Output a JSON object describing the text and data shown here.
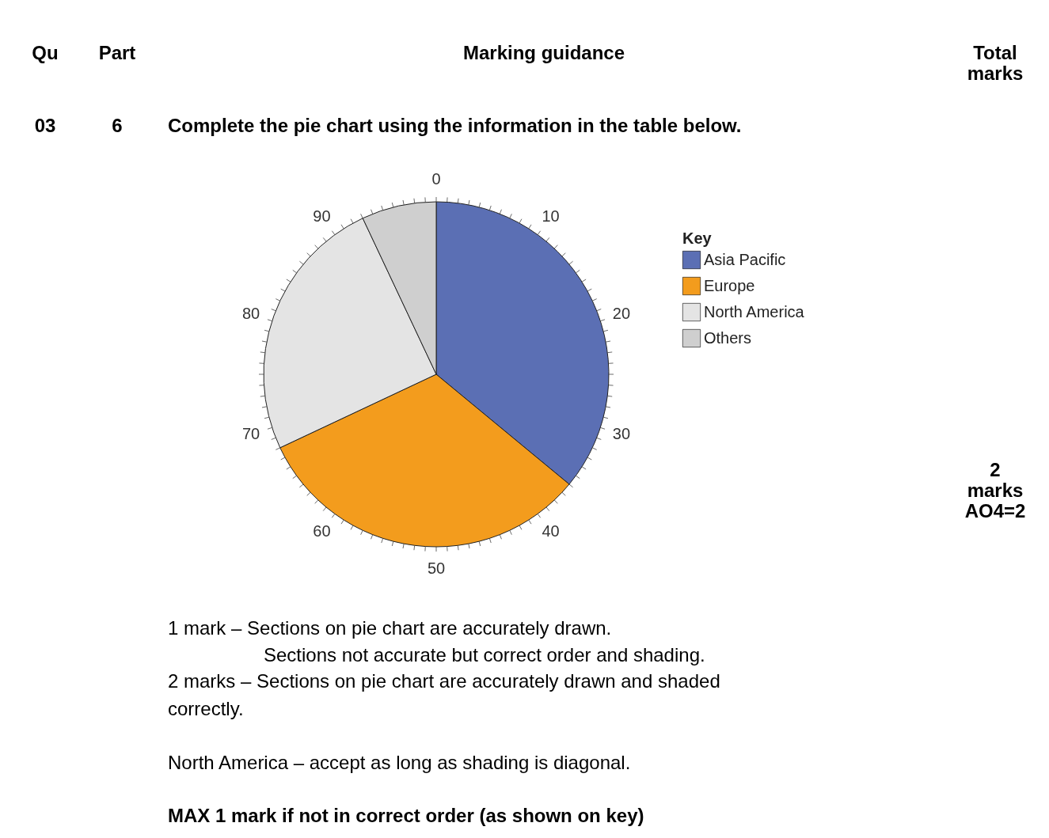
{
  "chart_data": {
    "type": "pie",
    "title": "Complete the pie chart using the information in the table below.",
    "legend_title": "Key",
    "legend": "right",
    "categories": [
      "Asia Pacific",
      "Europe",
      "North America",
      "Others"
    ],
    "values": [
      36,
      32,
      25,
      7
    ],
    "colors": [
      "#5b6fb4",
      "#f39c1d",
      "#e4e4e4",
      "#cfcfcf"
    ],
    "annotations": [
      "Qu",
      "Part",
      "Marking guidance",
      "Total marks",
      "03",
      "6",
      "1 mark – Sections on pie chart are accurately drawn.",
      "Sections not accurate but correct order and shading.",
      "2 marks – Sections on pie chart are accurately drawn and shaded",
      "correctly.",
      "North America – accept as long as shading is diagonal.",
      "MAX 1 mark if not in correct order (as shown on key)",
      "2 marks AO4=2",
      "0",
      "10",
      "20",
      "30",
      "40",
      "50",
      "60",
      "70",
      "80",
      "90"
    ]
  }
}
